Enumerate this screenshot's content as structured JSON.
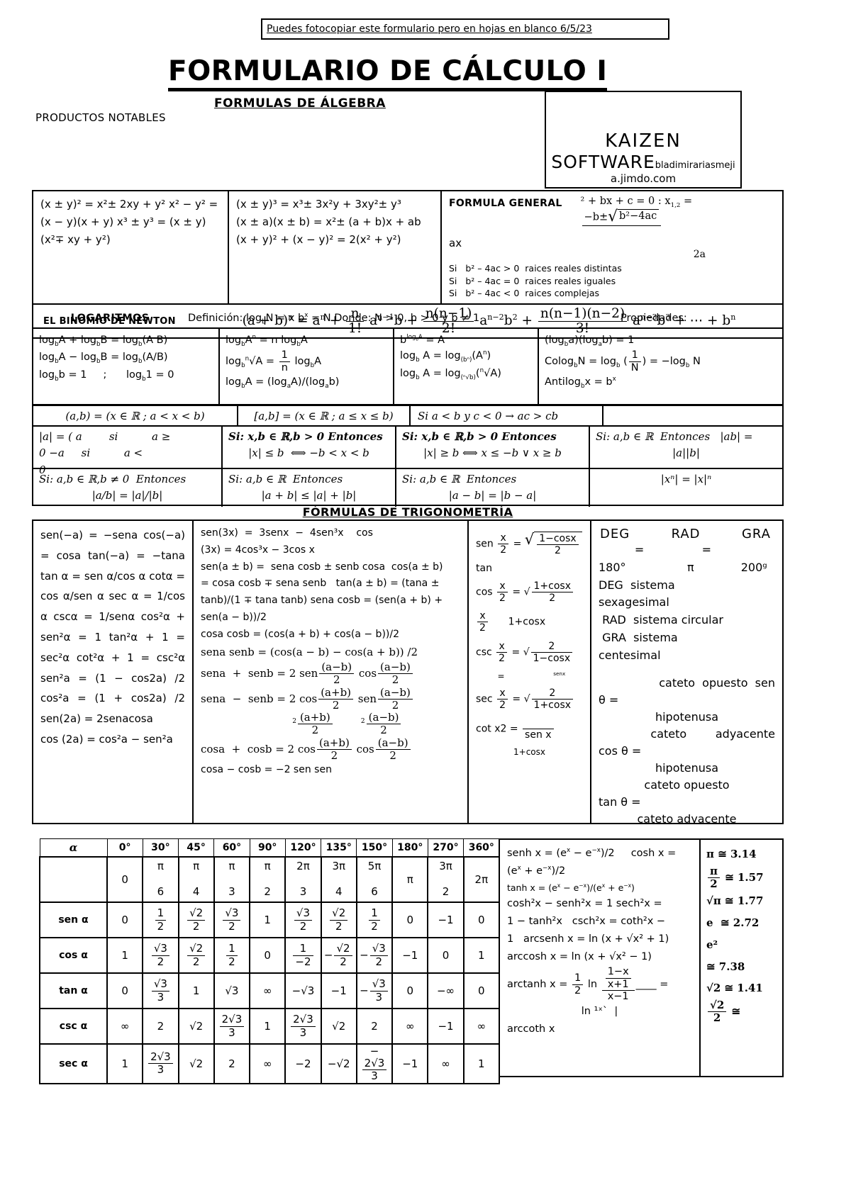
{
  "page": {
    "note": "Puedes fotocopiar este formulario pero en hojas en blanco  6/5/23",
    "title": "FORMULARIO DE CÁLCULO I",
    "subtitle": "FORMULAS DE ÁLGEBRA",
    "productos_label": "PRODUCTOS NOTABLES",
    "brand": {
      "name": "KAIZEN",
      "name2": "SOFTWARE",
      "author": "bladimirariasmeji",
      "site": "a.jimdo.com"
    }
  },
  "algebra": {
    "productos_left": "(x ± y)² = x²± 2xy + y²  x² − y² = (x − y)(x + y)  x³ ± y³ = (x ± y)(x²∓ xy + y²)",
    "productos_right": [
      "(x ± y)³ = x³± 3x²y + 3xy²± y³",
      "(x ± a)(x ± b) = x²± (a + b)x + ab",
      "(x + y)² + (x − y)² = 2(x² + y²)"
    ],
    "general": {
      "label": "FORMULA GENERAL",
      "eq": [
        "² + bx + c = 0 : x",
        {
          "sub": "1,2"
        },
        " = ",
        {
          "f": [
            [
              "−b±",
              {
                "s": [
                  "b²−4ac"
                ]
              }
            ],
            " "
          ]
        }
      ],
      "eq2": "ax",
      "eq3": "2a",
      "cases": [
        "Si   b² – 4ac > 0  raices reales distintas",
        "Si   b² – 4ac = 0  raices reales iguales",
        "Si   b² – 4ac < 0  raices complejas"
      ]
    },
    "newton": {
      "label": "EL BINOMIO DE NEWTON",
      "eq": [
        "(a + b)",
        {
          "sup": "n"
        },
        " = a",
        {
          "sup": "n"
        },
        " + ",
        {
          "f": [
            "n",
            "1!"
          ]
        },
        " a",
        {
          "sup": "n−1"
        },
        "b + ",
        {
          "f": [
            "n(n−1)",
            "2!"
          ]
        },
        " a",
        {
          "sup": "n−2"
        },
        "b",
        {
          "sup": "2"
        },
        " + ",
        {
          "f": [
            "n(n−1)(n−2)",
            "3!"
          ]
        },
        " a",
        {
          "sup": "n−3"
        },
        "b",
        {
          "sup": "3"
        },
        " + ⋯ + b",
        {
          "sup": "n"
        }
      ]
    }
  },
  "logs": {
    "label": "LOGARITMOS",
    "definition": [
      "Definición:    log",
      {
        "sub": "b"
      },
      "N = x         b",
      {
        "sup": "x"
      },
      " = N    Donde:  N > 0, b > 0  y  b ≠ 1"
    ],
    "properties_label": "Propiedades:",
    "cells": [
      [
        {
          "t": [
            "log",
            {
              "sub": "b"
            },
            "A + log",
            {
              "sub": "b"
            },
            "B = log",
            {
              "sub": "b"
            },
            "(A B)"
          ]
        },
        {
          "t": [
            "log",
            {
              "sub": "b"
            },
            "A − log",
            {
              "sub": "b"
            },
            "B = log",
            {
              "sub": "b"
            },
            "(A/B)"
          ]
        },
        {
          "t": [
            "log",
            {
              "sub": "b"
            },
            "b = 1     ;      log",
            {
              "sub": "b"
            },
            "1 = 0"
          ]
        }
      ],
      [
        {
          "t": [
            "log",
            {
              "sub": "b"
            },
            "A",
            {
              "sup": "n"
            },
            " = n log",
            {
              "sub": "b"
            },
            "A"
          ]
        },
        {
          "t": [
            "log",
            {
              "sub": "b"
            },
            {
              "sup": "n"
            },
            "√A = ",
            {
              "f": [
                "1",
                "n"
              ]
            },
            " log",
            {
              "sub": "b"
            },
            "A"
          ]
        },
        {
          "t": [
            "log",
            {
              "sub": "b"
            },
            "A = (log",
            {
              "sub": "a"
            },
            "A)/(log",
            {
              "sub": "a"
            },
            "b)"
          ]
        }
      ],
      [
        {
          "t": [
            "b",
            {
              "sup": [
                "log",
                {
                  "sub": "b"
                },
                "A"
              ]
            },
            " = A"
          ]
        },
        {
          "t": [
            "log",
            {
              "sub": "b"
            },
            " A = log",
            {
              "sub": "(bⁿ)"
            },
            "(A",
            {
              "sup": "n"
            },
            ")"
          ]
        },
        {
          "t": [
            "log",
            {
              "sub": "b"
            },
            " A = log",
            {
              "sub": "(ⁿ√b)"
            },
            "(",
            {
              "sup": "n"
            },
            "√A)"
          ]
        }
      ],
      [
        {
          "t": [
            "(log",
            {
              "sub": "b"
            },
            "a)(log",
            {
              "sub": "a"
            },
            "b) = 1"
          ]
        },
        {
          "t": [
            "Colog",
            {
              "sub": "b"
            },
            "N = log",
            {
              "sub": "b"
            },
            " (",
            {
              "f": [
                "1",
                "N"
              ]
            },
            ") = −log",
            {
              "sub": "b"
            },
            " N"
          ]
        },
        {
          "t": [
            "Antilog",
            {
              "sub": "b"
            },
            "x = b",
            {
              "sup": "x"
            }
          ]
        }
      ]
    ]
  },
  "sets": {
    "cells": [
      "(a,b) = (x ∈ ℝ ; a < x < b)",
      "[a,b] = (x ∈ ℝ ; a ≤ x ≤ b)",
      "Si a < b  y c < 0 → ac > cb",
      ""
    ]
  },
  "abs1": {
    "cells": [
      [
        "|a| = ( a        si          a ≥",
        "0 −a     si          a <",
        "0"
      ],
      [
        {
          "c": "bi",
          "t": [
            "Si: x,b ∈ ℝ,b > 0 Entonces"
          ]
        },
        {
          "c": "center",
          "t": [
            "|x| ≤ b  ⟺ −b < x < b"
          ]
        }
      ],
      [
        {
          "c": "bi",
          "t": [
            "Si: x,b ∈ ℝ,b > 0 Entonces"
          ]
        },
        {
          "c": "center",
          "t": [
            "|x| ≥ b ⟺ x ≤ −b ∨ x ≥ b"
          ]
        }
      ],
      [
        "Si: a,b ∈ ℝ  Entonces   |ab| =",
        {
          "c": "center",
          "t": [
            "|a||b|"
          ]
        }
      ]
    ]
  },
  "abs2": {
    "cells": [
      [
        "Si: a,b ∈ ℝ,b ≠ 0  Entonces",
        {
          "c": "center",
          "t": [
            "|a/b| = |a|/|b|"
          ]
        }
      ],
      [
        "Si: a,b ∈ ℝ  Entonces",
        {
          "c": "center",
          "t": [
            "|a + b| ≤ |a| + |b|"
          ]
        }
      ],
      [
        "Si: a,b ∈ ℝ  Entonces",
        {
          "c": "center",
          "t": [
            "|a − b| = |b − a|"
          ]
        }
      ],
      [
        {
          "c": "center",
          "t": [
            "|xⁿ| = |x|ⁿ"
          ]
        }
      ]
    ]
  },
  "trig": {
    "heading": "FÓRMULAS DE TRIGONOMETRÍA",
    "col1": "sen(−a) = −sena  cos(−a) = cosa  tan(−a) = −tana tan α = sen α/cos α  cotα = cos α/sen α    sec α = 1/cos α   cscα = 1/senα cos²α + sen²α = 1  tan²α + 1 = sec²α  cot²α + 1 = csc²α    sen²a = (1 − cos2a) /2   cos²a = (1 + cos2a) /2      sen(2a) = 2senacosa",
    "col1_last": "cos (2a) = cos²a − sen²a",
    "col2": [
      "sen(3x)  =  3senx  −  4sen³x    cos",
      "(3x) = 4cos³x − 3cos x",
      "sen(a ± b) =  sena cosb ± senb cosa  cos(a ± b)",
      "= cosa cosb ∓ sena senb   tan(a ± b) = (tana ±",
      "tanb)/(1 ∓ tana tanb) sena cosb = (sen(a + b) +",
      "sen(a − b))/2",
      "cosa cosb = (cos(a + b) + cos(a − b))/2",
      {
        "c": "serif",
        "t": [
          "sena senb = (cos(a − b) − cos(a + b)) /2"
        ]
      },
      {
        "c": "serif",
        "t": [
          "sena  +  senb = 2 sen",
          {
            "f": [
              "(a−b)",
              "2"
            ]
          },
          " cos",
          {
            "f": [
              "(a−b)",
              "2"
            ]
          }
        ]
      },
      {
        "c": "serif",
        "t": [
          "sena  −  senb = 2 cos",
          {
            "f": [
              "(a+b)",
              "2"
            ]
          },
          " sen",
          {
            "f": [
              "(a−b)",
              "2"
            ]
          }
        ]
      },
      {
        "c": "serif center",
        "t": [
          "          ",
          {
            "sup": "2"
          },
          {
            "f": [
              "(a+b)",
              "2"
            ]
          },
          "        ",
          {
            "sup": "2"
          },
          {
            "f": [
              "(a−b)",
              "2"
            ]
          }
        ]
      },
      {
        "c": "serif",
        "t": [
          "cosa  +  cosb = 2 cos",
          {
            "f": [
              "(a+b)",
              "2"
            ]
          },
          " cos",
          {
            "f": [
              "(a−b)",
              "2"
            ]
          }
        ]
      },
      "cosa − cosb = −2 sen sen"
    ],
    "col3": [
      {
        "t": [
          "sen ",
          {
            "f": [
              "x",
              "2"
            ]
          },
          " = ",
          {
            "s": [
              {
                "f": [
                  "1−cosx",
                  "2"
                ]
              }
            ]
          }
        ]
      },
      "tan",
      {
        "t": [
          "cos ",
          {
            "f": [
              "x",
              "2"
            ]
          },
          " = √",
          {
            "f": [
              "1+cosx",
              "2"
            ]
          }
        ]
      },
      {
        "t": [
          {
            "f": [
              "x",
              "2"
            ]
          },
          "      1+cosx"
        ]
      },
      {
        "t": [
          "csc ",
          {
            "f": [
              "x",
              "2"
            ]
          },
          " = √",
          {
            "f": [
              "2",
              "1−cosx"
            ]
          }
        ]
      },
      {
        "c": "small",
        "t": [
          "        =                  ",
          {
            "sup": "senx"
          }
        ]
      },
      {
        "t": [
          "sec ",
          {
            "f": [
              "x",
              "2"
            ]
          },
          " = √",
          {
            "f": [
              "2",
              "1+cosx"
            ]
          }
        ]
      },
      {
        "t": [
          "cot x2 ",
          "= ",
          {
            "f": [
              "      ",
              "sen x"
            ]
          }
        ]
      },
      {
        "c": "small center",
        "t": [
          "1+cosx"
        ]
      }
    ],
    "col4": {
      "deg": "DEG",
      "rad": "RAD",
      "gra": "GRA",
      "lines": [
        "          =                =",
        "180°                 π             200ᵍ",
        "DEG  sistema",
        "sexagesimal",
        " RAD  sistema circular",
        " GRA  sistema",
        "centesimal"
      ],
      "ratios": [
        {
          "c": "right",
          "t": [
            "cateto  opuesto  sen"
          ]
        },
        {
          "c": "left",
          "t": [
            "θ ="
          ]
        },
        {
          "c": "center",
          "t": [
            "hipotenusa"
          ]
        },
        {
          "c": "right",
          "t": [
            "cateto        adyacente"
          ]
        },
        {
          "c": "left",
          "t": [
            "cos θ ="
          ]
        },
        {
          "c": "center",
          "t": [
            "hipotenusa"
          ]
        },
        {
          "c": "center",
          "t": [
            "cateto opuesto"
          ]
        },
        {
          "c": "left",
          "t": [
            "tan θ ="
          ]
        },
        {
          "c": "center",
          "t": [
            "cateto adyacente"
          ]
        }
      ]
    }
  },
  "values_table": {
    "headers": [
      "α",
      "0°",
      "30°",
      "45°",
      "60°",
      "90°",
      "120°",
      "135°",
      "150°",
      "180°",
      "270°",
      "360°"
    ],
    "radians": [
      "0",
      "π/6",
      "π/4",
      "π/3",
      "π/2",
      "2π/3",
      "3π/4",
      "5π/6",
      "π",
      "3π/2",
      "2π"
    ],
    "rows": [
      {
        "label": "sen α",
        "values": [
          "0",
          "1/2",
          "√2/2",
          "√3/2",
          "1",
          "√3/2",
          "√2/2",
          "1/2",
          "0",
          "−1",
          "0"
        ]
      },
      {
        "label": "cos α",
        "values": [
          "1",
          "√3/2",
          "√2/2",
          "1/2",
          "0",
          "1/−2",
          "−√2/2",
          "−√3/2",
          "−1",
          "0",
          "1"
        ]
      },
      {
        "label": "tan α",
        "values": [
          "0",
          "√3/3",
          "1",
          "√3",
          "∞",
          "−√3",
          "−1",
          "−√3/3",
          "0",
          "−∞",
          "0"
        ]
      },
      {
        "label": "csc α",
        "values": [
          "∞",
          "2",
          "√2",
          "2√3/3",
          "1",
          "2√3/3",
          "√2",
          "2",
          "∞",
          "−1",
          "∞"
        ]
      },
      {
        "label": "sec α",
        "values": [
          "1",
          "2√3/3",
          "√2",
          "2",
          "∞",
          "−2",
          "−√2",
          "−2√3/3",
          "−1",
          "∞",
          "1"
        ]
      }
    ]
  },
  "hyper": [
    {
      "t": [
        "senh x = (e",
        {
          "sup": "x"
        },
        " − e",
        {
          "sup": "−x"
        },
        ")/2     cosh x ="
      ]
    },
    {
      "t": [
        "(e",
        {
          "sup": "x"
        },
        " + e",
        {
          "sup": "−x"
        },
        ")/2"
      ]
    },
    {
      "c": "small",
      "t": [
        "tanh x = (e",
        {
          "sup": "x"
        },
        " − e",
        {
          "sup": "−x"
        },
        ")/(e",
        {
          "sup": "x"
        },
        " + e",
        {
          "sup": "−x"
        },
        ")"
      ]
    },
    "cosh²x − senh²x = 1 sech²x =",
    "1 − tanh²x   csch²x = coth²x −",
    "1   arcsenh x = ln (x + √x² + 1)",
    "arccosh x = ln (x + √x² − 1)",
    {
      "t": [
        "arctanh x ",
        "= ",
        {
          "f": [
            "1",
            "2"
          ]
        },
        " ln ",
        {
          "f": [
            [
              {
                "f": [
                  "1−x",
                  "x+1"
                ]
              }
            ],
            "x−1"
          ]
        },
        "____ ="
      ]
    },
    {
      "c": "center",
      "t": [
        "ln ¹ˣ`  |"
      ]
    },
    "arccoth x"
  ],
  "constants": [
    {
      "t": [
        "π ≅ 3.14"
      ]
    },
    {
      "t": [
        {
          "f": [
            "π",
            "2"
          ]
        },
        " ≅ 1.57"
      ]
    },
    {
      "t": [
        "√π ≅ 1.77"
      ]
    },
    {
      "t": [
        "e  ≅ 2.72  e²"
      ]
    },
    {
      "t": [
        "≅ 7.38"
      ]
    },
    {
      "t": [
        "√2 ≅ 1.41"
      ]
    },
    {
      "t": [
        {
          "f": [
            "√2",
            "2"
          ]
        },
        " ≅"
      ]
    }
  ]
}
